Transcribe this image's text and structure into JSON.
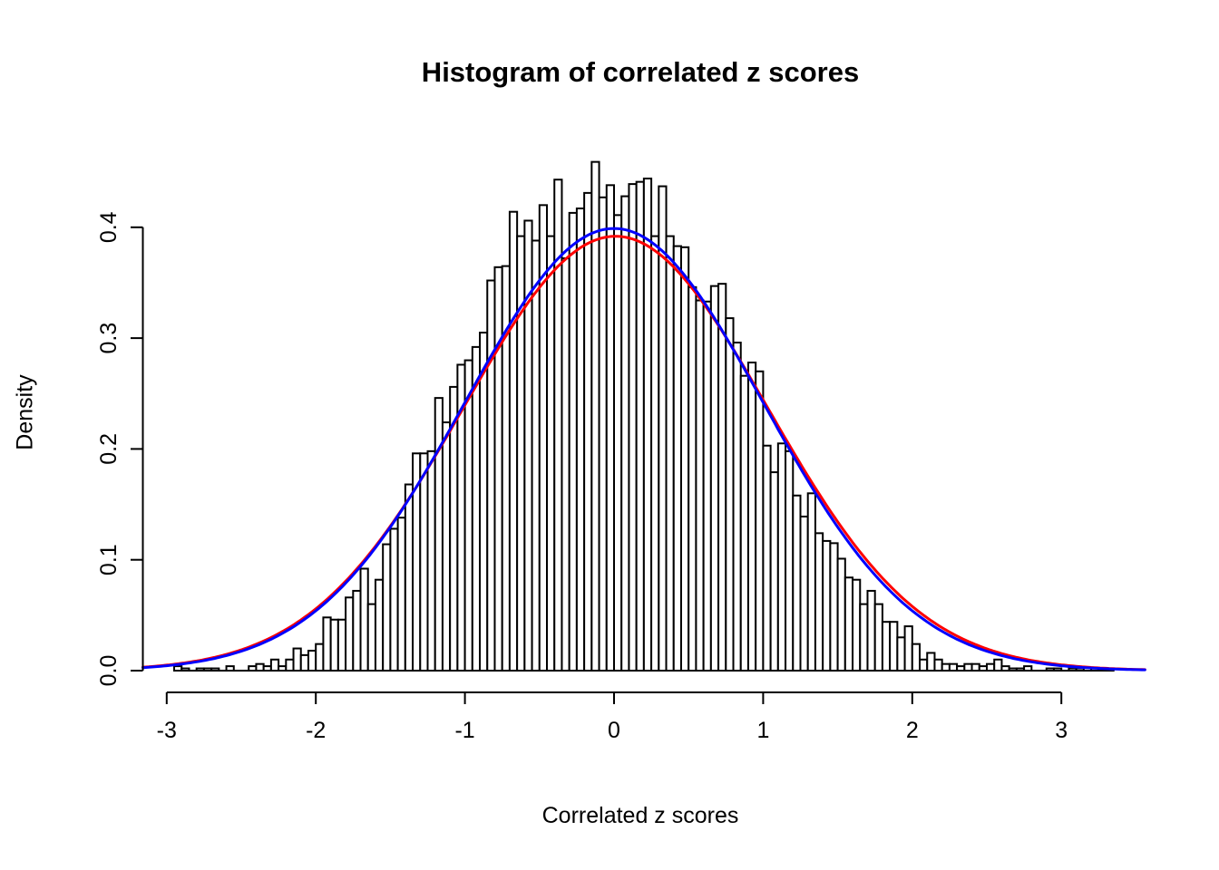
{
  "chart_data": {
    "type": "bar",
    "subtype": "histogram-with-density-curves",
    "title": "Histogram of correlated z scores",
    "xlabel": "Correlated z scores",
    "ylabel": "Density",
    "x_ticks": [
      {
        "v": -3,
        "label": "-3"
      },
      {
        "v": -2,
        "label": "-2"
      },
      {
        "v": -1,
        "label": "-1"
      },
      {
        "v": 0,
        "label": "0"
      },
      {
        "v": 1,
        "label": "1"
      },
      {
        "v": 2,
        "label": "2"
      },
      {
        "v": 3,
        "label": "3"
      }
    ],
    "y_ticks": [
      {
        "v": 0.0,
        "label": "0.0"
      },
      {
        "v": 0.1,
        "label": "0.1"
      },
      {
        "v": 0.2,
        "label": "0.2"
      },
      {
        "v": 0.3,
        "label": "0.3"
      },
      {
        "v": 0.4,
        "label": "0.4"
      }
    ],
    "xlim": [
      -3.2,
      3.6
    ],
    "ylim": [
      0,
      0.47
    ],
    "grid": false,
    "legend": "none",
    "bar_fill": "#ffffff",
    "bar_stroke": "#000000",
    "axis_color": "#000000",
    "bins": {
      "start": -2.95,
      "width": 0.05,
      "densities": [
        0.004,
        0.002,
        0.0,
        0.002,
        0.002,
        0.002,
        0.0,
        0.004,
        0.0,
        0.0,
        0.004,
        0.006,
        0.004,
        0.01,
        0.004,
        0.01,
        0.02,
        0.014,
        0.018,
        0.024,
        0.048,
        0.046,
        0.046,
        0.066,
        0.072,
        0.092,
        0.06,
        0.082,
        0.114,
        0.128,
        0.138,
        0.168,
        0.196,
        0.196,
        0.198,
        0.246,
        0.224,
        0.256,
        0.276,
        0.28,
        0.292,
        0.305,
        0.352,
        0.364,
        0.365,
        0.414,
        0.392,
        0.406,
        0.388,
        0.42,
        0.392,
        0.443,
        0.372,
        0.413,
        0.417,
        0.431,
        0.459,
        0.427,
        0.438,
        0.411,
        0.428,
        0.439,
        0.441,
        0.444,
        0.392,
        0.437,
        0.392,
        0.383,
        0.382,
        0.346,
        0.334,
        0.333,
        0.347,
        0.349,
        0.318,
        0.296,
        0.266,
        0.278,
        0.27,
        0.203,
        0.179,
        0.205,
        0.198,
        0.158,
        0.139,
        0.16,
        0.124,
        0.117,
        0.115,
        0.101,
        0.084,
        0.082,
        0.06,
        0.072,
        0.06,
        0.044,
        0.044,
        0.03,
        0.04,
        0.024,
        0.01,
        0.016,
        0.01,
        0.006,
        0.006,
        0.004,
        0.006,
        0.006,
        0.004,
        0.006,
        0.01,
        0.004,
        0.002,
        0.002,
        0.004,
        0.0,
        0.0,
        0.002,
        0.002,
        0.0,
        0.002,
        0.002,
        0.0,
        0.002,
        0.002,
        0.0
      ]
    },
    "curves": [
      {
        "name": "fitted-normal-red",
        "color": "#ff0000",
        "mean": 0.01,
        "sd": 1.018,
        "x_from": -3.16,
        "x_to": 3.56
      },
      {
        "name": "standard-normal-blue",
        "color": "#0000ff",
        "mean": 0.0,
        "sd": 1.0,
        "x_from": -3.16,
        "x_to": 3.56
      }
    ]
  }
}
